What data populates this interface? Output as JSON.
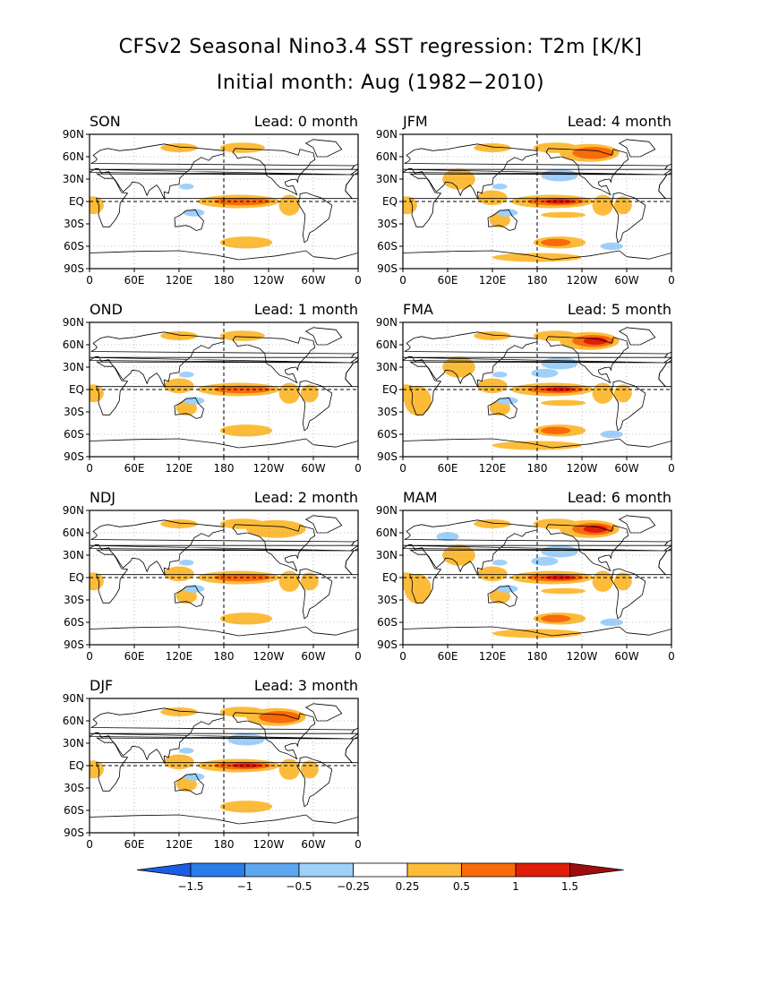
{
  "title": "CFSv2 Seasonal Nino3.4 SST regression: T2m [K/K]",
  "subtitle": "Initial month: Aug (1982−2010)",
  "lon_ticks": [
    "0",
    "60E",
    "120E",
    "180",
    "120W",
    "60W",
    "0"
  ],
  "lat_ticks": [
    "90N",
    "60N",
    "30N",
    "EQ",
    "30S",
    "60S",
    "90S"
  ],
  "panels": [
    {
      "season": "SON",
      "lead": "Lead: 0 month",
      "intensity": 0.55
    },
    {
      "season": "OND",
      "lead": "Lead: 1 month",
      "intensity": 0.65
    },
    {
      "season": "NDJ",
      "lead": "Lead: 2 month",
      "intensity": 0.75
    },
    {
      "season": "DJF",
      "lead": "Lead: 3 month",
      "intensity": 0.85
    },
    {
      "season": "JFM",
      "lead": "Lead: 4 month",
      "intensity": 0.95
    },
    {
      "season": "FMA",
      "lead": "Lead: 5 month",
      "intensity": 1.05
    },
    {
      "season": "MAM",
      "lead": "Lead: 6 month",
      "intensity": 1.15
    }
  ],
  "colorbar": {
    "labels": [
      "−1.5",
      "−1",
      "−0.5",
      "−0.25",
      "0.25",
      "0.5",
      "1",
      "1.5"
    ],
    "colors": [
      "#1a5ee6",
      "#2a7de8",
      "#5ea6f0",
      "#9fd0fa",
      "#ffffff",
      "#fcbc3a",
      "#fa6a0a",
      "#e01c0a",
      "#a00c0c"
    ]
  }
}
